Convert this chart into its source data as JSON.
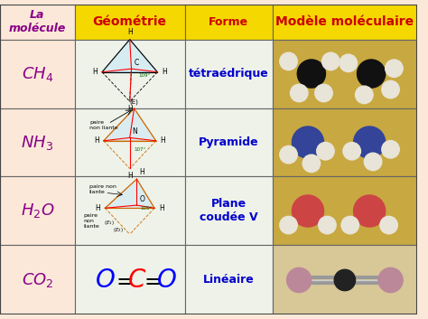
{
  "header_bg": "#f5d800",
  "header_text_color": "#cc0000",
  "col1_bg": "#fce8d8",
  "col2_bg": "#eef2e8",
  "col3_bg": "#eef2e8",
  "col4_bg": "#c8a840",
  "col4_co2_bg": "#d8c898",
  "border_color": "#666666",
  "headers": [
    "La\nmolécule",
    "Géométrie",
    "Forme",
    "Modèle moléculaire"
  ],
  "molecules": [
    "$CH_4$",
    "$NH_3$",
    "$H_2O$",
    "$CO_2$"
  ],
  "formes": [
    "tétraédrique",
    "Pyramide",
    "Plane\ncoudée V",
    "Linéaire"
  ],
  "mol_label_color": "#880088",
  "forme_color": "#0000cc",
  "header_font_size": 9,
  "mol_font_size": 13,
  "forme_font_size": 9,
  "figsize": [
    4.74,
    3.53
  ],
  "dpi": 100
}
